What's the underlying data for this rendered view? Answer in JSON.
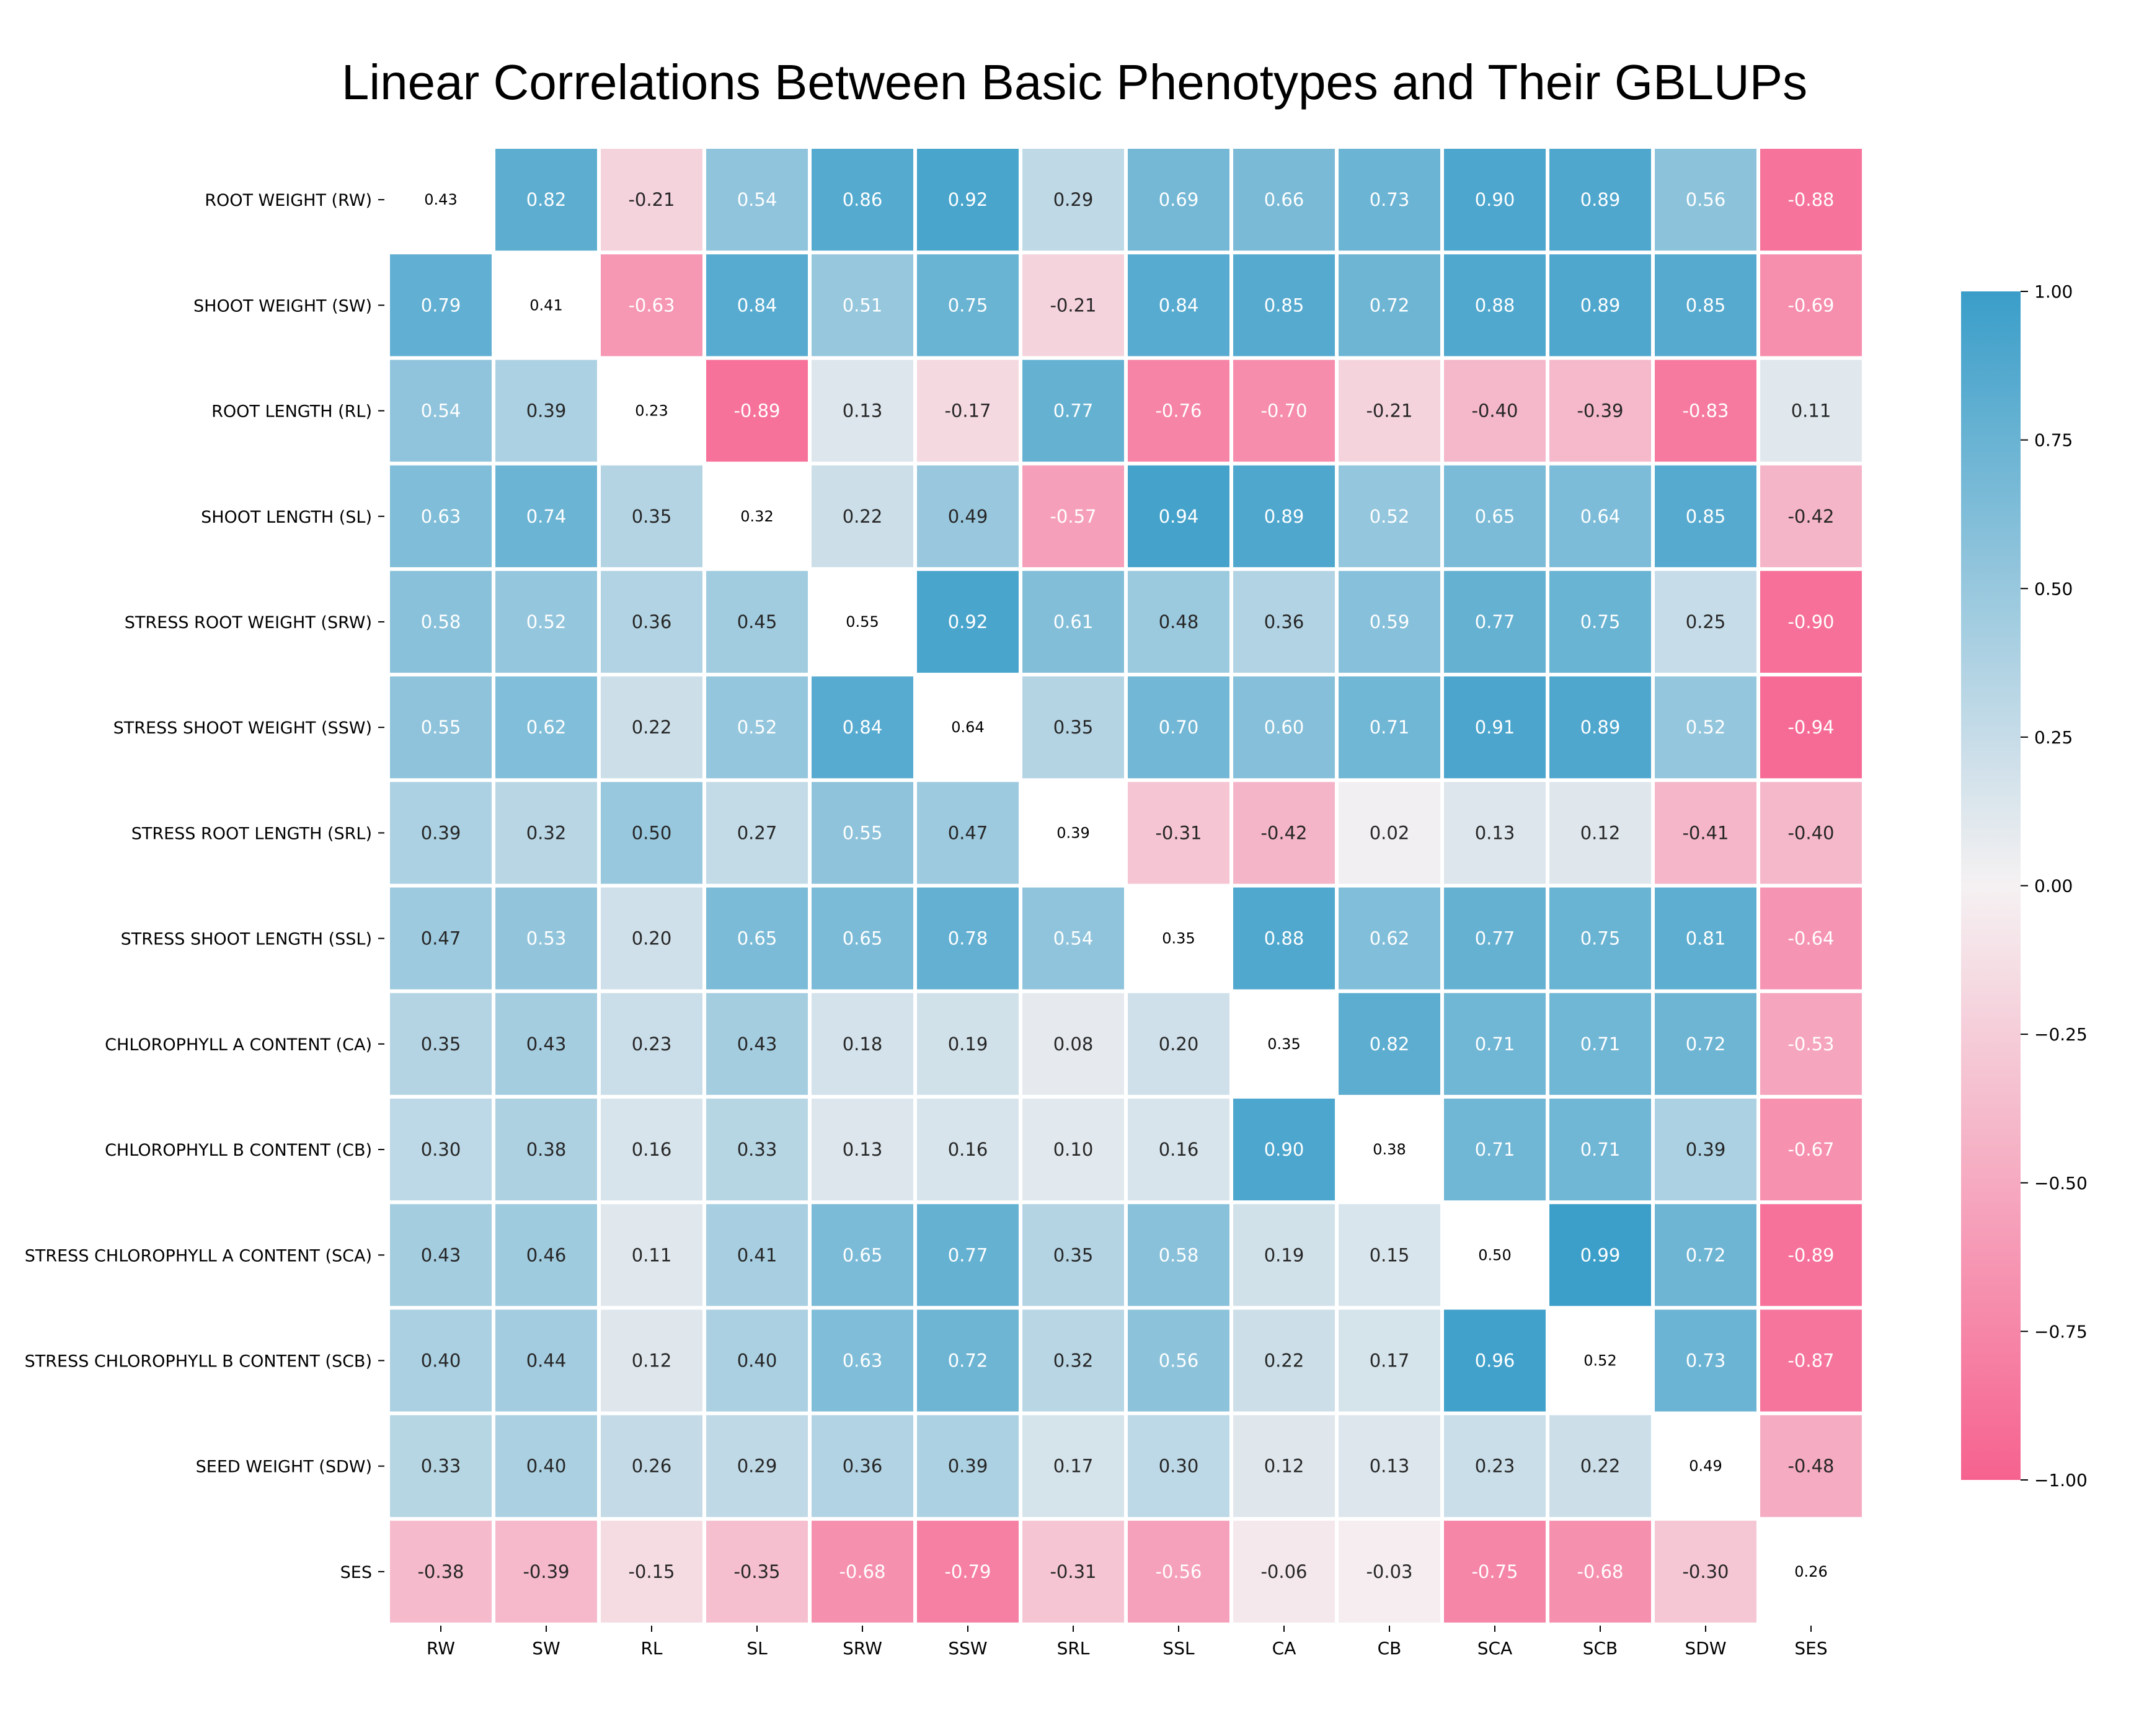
{
  "chart_data": {
    "type": "heatmap",
    "title": "Linear Correlations Between Basic Phenotypes and Their GBLUPs",
    "row_labels": [
      "ROOT WEIGHT (RW)",
      "SHOOT WEIGHT (SW)",
      "ROOT LENGTH (RL)",
      "SHOOT LENGTH (SL)",
      "STRESS ROOT WEIGHT (SRW)",
      "STRESS SHOOT WEIGHT (SSW)",
      "STRESS ROOT LENGTH (SRL)",
      "STRESS SHOOT LENGTH (SSL)",
      "CHLOROPHYLL A CONTENT (CA)",
      "CHLOROPHYLL B CONTENT (CB)",
      "STRESS CHLOROPHYLL A CONTENT (SCA)",
      "STRESS CHLOROPHYLL B CONTENT (SCB)",
      "SEED WEIGHT (SDW)",
      "SES"
    ],
    "col_labels": [
      "RW",
      "SW",
      "RL",
      "SL",
      "SRW",
      "SSW",
      "SRL",
      "SSL",
      "CA",
      "CB",
      "SCA",
      "SCB",
      "SDW",
      "SES"
    ],
    "values": [
      [
        0.43,
        0.82,
        -0.21,
        0.54,
        0.86,
        0.92,
        0.29,
        0.69,
        0.66,
        0.73,
        0.9,
        0.89,
        0.56,
        -0.88
      ],
      [
        0.79,
        0.41,
        -0.63,
        0.84,
        0.51,
        0.75,
        -0.21,
        0.84,
        0.85,
        0.72,
        0.88,
        0.89,
        0.85,
        -0.69
      ],
      [
        0.54,
        0.39,
        0.23,
        -0.89,
        0.13,
        -0.17,
        0.77,
        -0.76,
        -0.7,
        -0.21,
        -0.4,
        -0.39,
        -0.83,
        0.11
      ],
      [
        0.63,
        0.74,
        0.35,
        0.32,
        0.22,
        0.49,
        -0.57,
        0.94,
        0.89,
        0.52,
        0.65,
        0.64,
        0.85,
        -0.42
      ],
      [
        0.58,
        0.52,
        0.36,
        0.45,
        0.55,
        0.92,
        0.61,
        0.48,
        0.36,
        0.59,
        0.77,
        0.75,
        0.25,
        -0.9
      ],
      [
        0.55,
        0.62,
        0.22,
        0.52,
        0.84,
        0.64,
        0.35,
        0.7,
        0.6,
        0.71,
        0.91,
        0.89,
        0.52,
        -0.94
      ],
      [
        0.39,
        0.32,
        0.5,
        0.27,
        0.55,
        0.47,
        0.39,
        -0.31,
        -0.42,
        0.02,
        0.13,
        0.12,
        -0.41,
        -0.4
      ],
      [
        0.47,
        0.53,
        0.2,
        0.65,
        0.65,
        0.78,
        0.54,
        0.35,
        0.88,
        0.62,
        0.77,
        0.75,
        0.81,
        -0.64
      ],
      [
        0.35,
        0.43,
        0.23,
        0.43,
        0.18,
        0.19,
        0.08,
        0.2,
        0.35,
        0.82,
        0.71,
        0.71,
        0.72,
        -0.53
      ],
      [
        0.3,
        0.38,
        0.16,
        0.33,
        0.13,
        0.16,
        0.1,
        0.16,
        0.9,
        0.38,
        0.71,
        0.71,
        0.39,
        -0.67
      ],
      [
        0.43,
        0.46,
        0.11,
        0.41,
        0.65,
        0.77,
        0.35,
        0.58,
        0.19,
        0.15,
        0.5,
        0.99,
        0.72,
        -0.89
      ],
      [
        0.4,
        0.44,
        0.12,
        0.4,
        0.63,
        0.72,
        0.32,
        0.56,
        0.22,
        0.17,
        0.96,
        0.52,
        0.73,
        -0.87
      ],
      [
        0.33,
        0.4,
        0.26,
        0.29,
        0.36,
        0.39,
        0.17,
        0.3,
        0.12,
        0.13,
        0.23,
        0.22,
        0.49,
        -0.48
      ],
      [
        -0.38,
        -0.39,
        -0.15,
        -0.35,
        -0.68,
        -0.79,
        -0.31,
        -0.56,
        -0.06,
        -0.03,
        -0.75,
        -0.68,
        -0.3,
        0.26
      ]
    ],
    "diagonal_unfilled": true,
    "colorbar": {
      "min": -1.0,
      "max": 1.0,
      "tick_labels": [
        "1.00",
        "0.75",
        "0.50",
        "0.25",
        "0.00",
        "−0.25",
        "−0.50",
        "−0.75",
        "−1.00"
      ],
      "tick_values": [
        1.0,
        0.75,
        0.5,
        0.25,
        0.0,
        -0.25,
        -0.5,
        -0.75,
        -1.0
      ],
      "color_positive": "#3a9ec9",
      "color_zero": "#f5f1f2",
      "color_negative": "#f6628f"
    },
    "legend_placement": "right",
    "grid": false
  }
}
